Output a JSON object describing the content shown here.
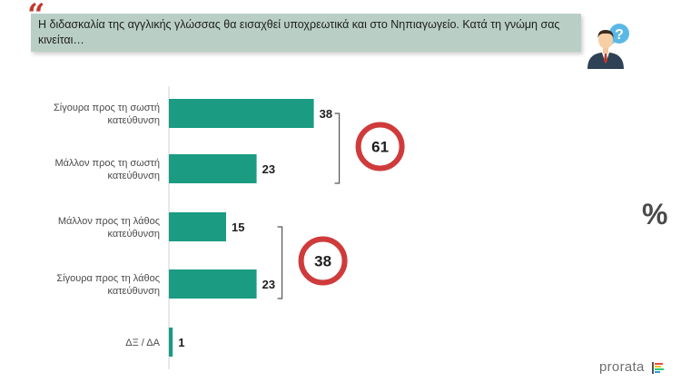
{
  "header": {
    "quote_mark": "“",
    "question": "Η διδασκαλία της αγγλικής γλώσσας θα εισαχθεί υποχρεωτικά και στο Νηπιαγωγείο. Κατά τη γνώμη σας κινείται…",
    "person_icon": "person-with-question-bubble-icon"
  },
  "percent_sign": "%",
  "logo": {
    "text": "prorata",
    "icon": "colored-bars-icon"
  },
  "colors": {
    "bar": "#1a9b82",
    "circle": "#cf3b3b",
    "bracket": "#555555",
    "question_bg": "#b9cfc5"
  },
  "chart_data": {
    "type": "bar",
    "orientation": "horizontal",
    "categories": [
      [
        "Σίγουρα προς τη σωστή",
        "κατεύθυνση"
      ],
      [
        "Μάλλον προς τη σωστή",
        "κατεύθυνση"
      ],
      [
        "Μάλλον προς τη λάθος",
        "κατεύθυνση"
      ],
      [
        "Σίγουρα προς τη λάθος",
        "κατεύθυνση"
      ],
      [
        "ΔΞ / ΔΑ"
      ]
    ],
    "values": [
      38,
      23,
      15,
      23,
      1
    ],
    "value_labels": [
      "38",
      "23",
      "15",
      "23",
      "1"
    ],
    "unit": "%",
    "groups": [
      {
        "indices": [
          0,
          1
        ],
        "total": 61,
        "total_label": "61"
      },
      {
        "indices": [
          2,
          3
        ],
        "total": 38,
        "total_label": "38"
      }
    ]
  }
}
